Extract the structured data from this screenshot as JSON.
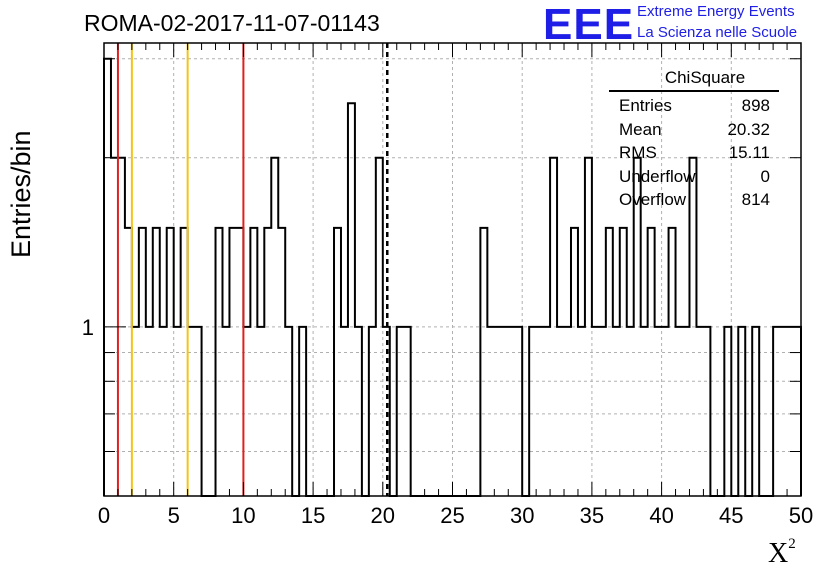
{
  "title": "ROMA-02-2017-11-07-01143",
  "logo": {
    "mark": "EEE",
    "line1": "Extreme Energy Events",
    "line2": "La Scienza nelle Scuole",
    "color": "#1e1ee6"
  },
  "stats_box": {
    "title": "ChiSquare",
    "rows": [
      {
        "label": "Entries",
        "value": "898"
      },
      {
        "label": "Mean",
        "value": "20.32"
      },
      {
        "label": "RMS",
        "value": "15.11"
      },
      {
        "label": "Underflow",
        "value": "0"
      },
      {
        "label": "Overflow",
        "value": "814"
      }
    ]
  },
  "chart_data": {
    "type": "bar",
    "histogram": true,
    "xlabel": "X",
    "xlabel_superscript": "2",
    "ylabel": "Entries/bin",
    "xlim": [
      0,
      50
    ],
    "ylim": [
      0.5,
      3.2
    ],
    "log_y": true,
    "grid": true,
    "bin_width": 0.5,
    "x_ticks": [
      0,
      5,
      10,
      15,
      20,
      25,
      30,
      35,
      40,
      45,
      50
    ],
    "y_tick_labels": [
      {
        "value": 1,
        "label": "1"
      }
    ],
    "bins": [
      [
        0,
        3
      ],
      [
        0.5,
        2
      ],
      [
        1,
        2
      ],
      [
        1.5,
        1.5
      ],
      [
        2,
        1
      ],
      [
        2.5,
        1.5
      ],
      [
        3,
        1
      ],
      [
        3.5,
        1.5
      ],
      [
        4,
        1
      ],
      [
        4.5,
        1.5
      ],
      [
        5,
        1
      ],
      [
        5.5,
        1.5
      ],
      [
        6,
        1
      ],
      [
        6.5,
        1
      ],
      [
        7,
        0
      ],
      [
        7.5,
        0
      ],
      [
        8,
        1.5
      ],
      [
        8.5,
        1
      ],
      [
        9,
        1.5
      ],
      [
        9.5,
        1.5
      ],
      [
        10,
        1
      ],
      [
        10.5,
        1.5
      ],
      [
        11,
        1
      ],
      [
        11.5,
        1.5
      ],
      [
        12,
        2
      ],
      [
        12.5,
        1.5
      ],
      [
        13,
        1
      ],
      [
        13.5,
        0
      ],
      [
        14,
        1
      ],
      [
        14.5,
        0
      ],
      [
        15,
        0
      ],
      [
        15.5,
        0
      ],
      [
        16,
        0
      ],
      [
        16.5,
        1.5
      ],
      [
        17,
        1
      ],
      [
        17.5,
        2.5
      ],
      [
        18,
        1
      ],
      [
        18.5,
        0
      ],
      [
        19,
        1
      ],
      [
        19.5,
        2
      ],
      [
        20,
        1
      ],
      [
        20.5,
        0
      ],
      [
        21,
        1
      ],
      [
        21.5,
        1
      ],
      [
        22,
        0
      ],
      [
        22.5,
        0
      ],
      [
        23,
        0
      ],
      [
        23.5,
        0
      ],
      [
        24,
        0
      ],
      [
        24.5,
        0
      ],
      [
        25,
        0
      ],
      [
        25.5,
        0
      ],
      [
        26,
        0
      ],
      [
        26.5,
        0
      ],
      [
        27,
        1.5
      ],
      [
        27.5,
        1
      ],
      [
        28,
        1
      ],
      [
        28.5,
        1
      ],
      [
        29,
        1
      ],
      [
        29.5,
        1
      ],
      [
        30,
        0
      ],
      [
        30.5,
        1
      ],
      [
        31,
        1
      ],
      [
        31.5,
        1
      ],
      [
        32,
        2
      ],
      [
        32.5,
        1
      ],
      [
        33,
        1
      ],
      [
        33.5,
        1.5
      ],
      [
        34,
        1
      ],
      [
        34.5,
        2
      ],
      [
        35,
        1
      ],
      [
        35.5,
        1
      ],
      [
        36,
        1.5
      ],
      [
        36.5,
        1
      ],
      [
        37,
        1.5
      ],
      [
        37.5,
        1
      ],
      [
        38,
        2
      ],
      [
        38.5,
        1
      ],
      [
        39,
        1.5
      ],
      [
        39.5,
        1
      ],
      [
        40,
        1
      ],
      [
        40.5,
        1.5
      ],
      [
        41,
        1
      ],
      [
        41.5,
        1
      ],
      [
        42,
        2
      ],
      [
        42.5,
        1
      ],
      [
        43,
        1
      ],
      [
        43.5,
        0
      ],
      [
        44,
        0
      ],
      [
        44.5,
        1
      ],
      [
        45,
        0
      ],
      [
        45.5,
        1
      ],
      [
        46,
        0
      ],
      [
        46.5,
        1
      ],
      [
        47,
        0
      ],
      [
        47.5,
        0
      ],
      [
        48,
        1
      ],
      [
        48.5,
        1
      ],
      [
        49,
        1
      ],
      [
        49.5,
        1
      ]
    ],
    "vertical_lines": [
      {
        "x": 1,
        "color": "#e02020",
        "style": "solid"
      },
      {
        "x": 2,
        "color": "#f2c418",
        "style": "solid"
      },
      {
        "x": 6,
        "color": "#f2c418",
        "style": "solid"
      },
      {
        "x": 10,
        "color": "#e02020",
        "style": "solid"
      },
      {
        "x": 20.32,
        "color": "#000000",
        "style": "dashed"
      }
    ],
    "frame_color": "#000000",
    "grid_color": "#b0b0b0"
  }
}
